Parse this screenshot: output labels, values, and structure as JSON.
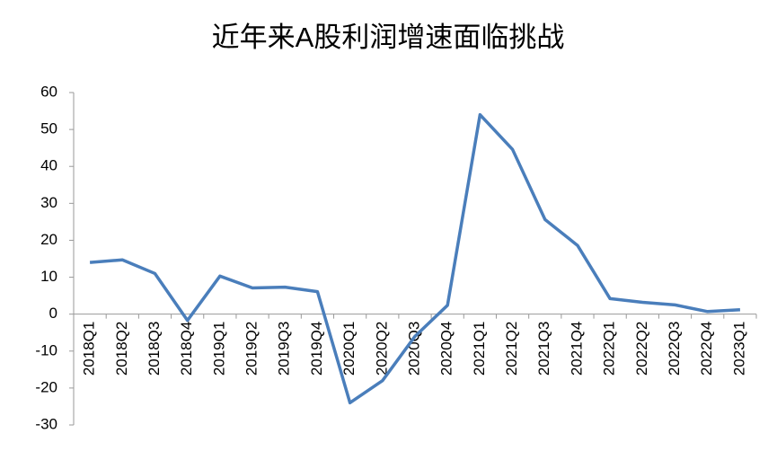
{
  "chart_data": {
    "type": "line",
    "title": "近年来A股利润增速面临挑战",
    "categories": [
      "2018Q1",
      "2018Q2",
      "2018Q3",
      "2018Q4",
      "2019Q1",
      "2019Q2",
      "2019Q3",
      "2019Q4",
      "2020Q1",
      "2020Q2",
      "2020Q3",
      "2020Q4",
      "2021Q1",
      "2021Q2",
      "2021Q3",
      "2021Q4",
      "2022Q1",
      "2022Q2",
      "2022Q3",
      "2022Q4",
      "2023Q1"
    ],
    "values": [
      14,
      14.7,
      11,
      -1.7,
      10.3,
      7.1,
      7.3,
      6.1,
      -24,
      -18,
      -6,
      2.4,
      54,
      44.6,
      25.6,
      18.6,
      4.2,
      3.2,
      2.5,
      0.7,
      1.2
    ],
    "color": "#4a7ebb",
    "ylim": [
      -30,
      60
    ],
    "yticks": [
      -30,
      -20,
      -10,
      0,
      10,
      20,
      30,
      40,
      50,
      60
    ],
    "grid": false
  }
}
